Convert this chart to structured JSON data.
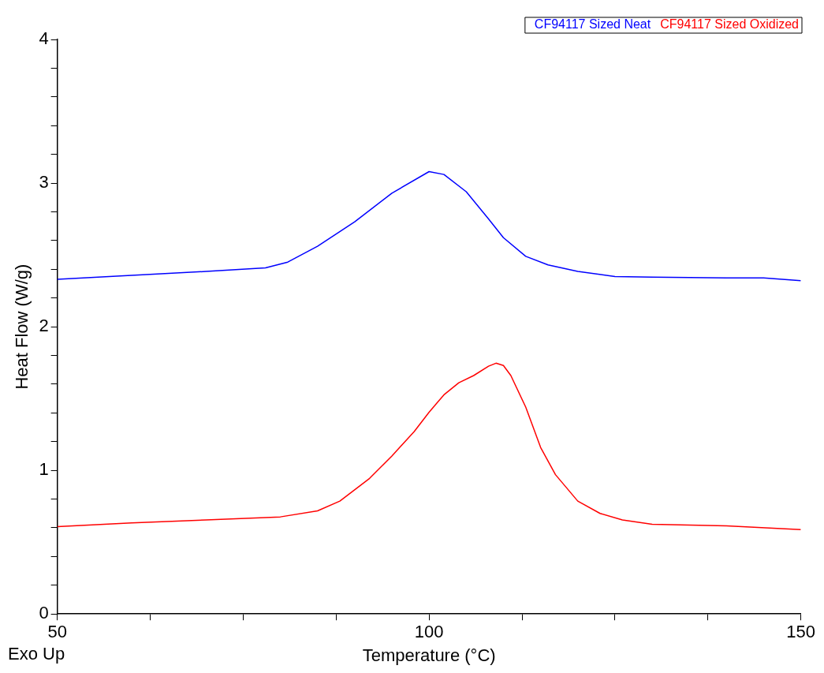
{
  "chart_data": {
    "type": "line",
    "xlabel": "Temperature (°C)",
    "ylabel": "Heat Flow (W/g)",
    "annotations": [
      "Exo Up"
    ],
    "xlim": [
      50,
      150
    ],
    "xticks": [
      50,
      {
        "value": 62.5,
        "label": null
      },
      {
        "value": 75,
        "label": null
      },
      {
        "value": 87.5,
        "label": null
      },
      100,
      {
        "value": 112.5,
        "label": null
      },
      {
        "value": 125,
        "label": null
      },
      {
        "value": 137.5,
        "label": null
      },
      150
    ],
    "ylim": [
      0,
      4
    ],
    "yticks": [
      0,
      {
        "value": 0.2,
        "label": null
      },
      {
        "value": 0.4,
        "label": null
      },
      {
        "value": 0.6,
        "label": null
      },
      {
        "value": 0.8,
        "label": null
      },
      1,
      {
        "value": 1.2,
        "label": null
      },
      {
        "value": 1.4,
        "label": null
      },
      {
        "value": 1.6,
        "label": null
      },
      {
        "value": 1.8,
        "label": null
      },
      2,
      {
        "value": 2.2,
        "label": null
      },
      {
        "value": 2.4,
        "label": null
      },
      {
        "value": 2.6,
        "label": null
      },
      {
        "value": 2.8,
        "label": null
      },
      3,
      {
        "value": 3.2,
        "label": null
      },
      {
        "value": 3.4,
        "label": null
      },
      {
        "value": 3.6,
        "label": null
      },
      {
        "value": 3.8,
        "label": null
      },
      4
    ],
    "grid": false,
    "legend": "top right",
    "marker": "none",
    "line_style": "solid",
    "series": [
      {
        "name": "CF94117 Sized Neat",
        "color": "#0000ff",
        "x": [
          50,
          70,
          78,
          81,
          85,
          90,
          95,
          100,
          102,
          105,
          108,
          110,
          113,
          116,
          120,
          125,
          130,
          140,
          145,
          150
        ],
        "values": [
          2.33,
          2.385,
          2.41,
          2.45,
          2.56,
          2.73,
          2.93,
          3.08,
          3.06,
          2.94,
          2.75,
          2.62,
          2.49,
          2.43,
          2.385,
          2.35,
          2.345,
          2.34,
          2.34,
          2.32
        ]
      },
      {
        "name": "CF94117 Sized Oxidized",
        "color": "#ff0000",
        "x": [
          50,
          60,
          70,
          80,
          85,
          88,
          92,
          95,
          98,
          100,
          102,
          104,
          106,
          108,
          109,
          110,
          111,
          113,
          115,
          117,
          120,
          123,
          126,
          130,
          140,
          150
        ],
        "values": [
          0.608,
          0.634,
          0.655,
          0.676,
          0.718,
          0.786,
          0.944,
          1.1,
          1.27,
          1.405,
          1.526,
          1.61,
          1.66,
          1.725,
          1.746,
          1.73,
          1.66,
          1.44,
          1.16,
          0.97,
          0.786,
          0.7,
          0.655,
          0.624,
          0.613,
          0.587
        ]
      }
    ]
  }
}
